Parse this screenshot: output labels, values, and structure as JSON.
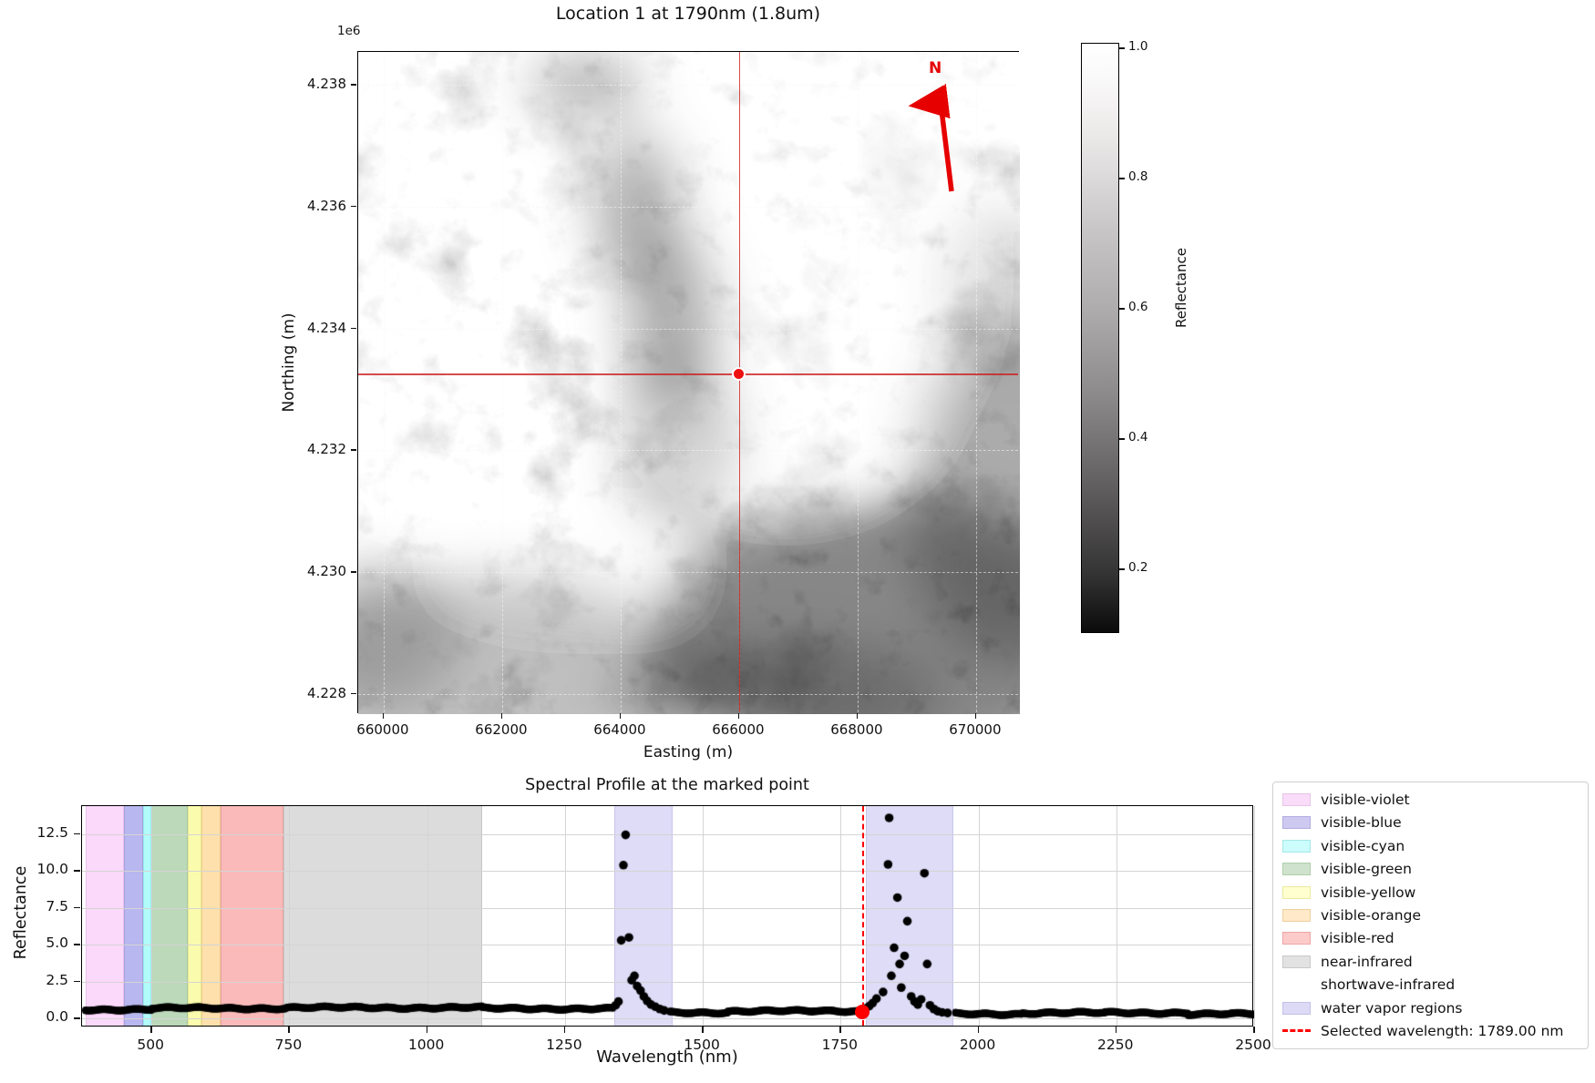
{
  "map": {
    "title": "Location 1 at 1790nm (1.8um)",
    "xlabel": "Easting (m)",
    "ylabel": "Northing (m)",
    "offset_label": "1e6",
    "north_label": "N",
    "xlim": [
      659570,
      670740
    ],
    "ylim": [
      4227670,
      4238540
    ],
    "x_ticks": [
      {
        "label": "660000",
        "value": 660000
      },
      {
        "label": "662000",
        "value": 662000
      },
      {
        "label": "664000",
        "value": 664000
      },
      {
        "label": "666000",
        "value": 666000
      },
      {
        "label": "668000",
        "value": 668000
      },
      {
        "label": "670000",
        "value": 670000
      }
    ],
    "y_ticks": [
      {
        "label": "4.238",
        "value": 4238000
      },
      {
        "label": "4.236",
        "value": 4236000
      },
      {
        "label": "4.234",
        "value": 4234000
      },
      {
        "label": "4.232",
        "value": 4232000
      },
      {
        "label": "4.230",
        "value": 4230000
      },
      {
        "label": "4.228",
        "value": 4228000
      }
    ],
    "marker": {
      "easting": 666000,
      "northing": 4233260
    },
    "crosshair_color": "#cd1e1e",
    "marker_color": "#ee1111",
    "north_arrow_color": "#e60000"
  },
  "colorbar": {
    "label": "Reflectance",
    "vmin": 0.101,
    "vmax": 1.007,
    "ticks": [
      {
        "label": "1.0",
        "value": 1.0
      },
      {
        "label": "0.8",
        "value": 0.8
      },
      {
        "label": "0.6",
        "value": 0.6
      },
      {
        "label": "0.4",
        "value": 0.4
      },
      {
        "label": "0.2",
        "value": 0.2
      }
    ]
  },
  "chart_data": {
    "type": "scatter",
    "title": "Spectral Profile at the marked point",
    "xlabel": "Wavelength (nm)",
    "ylabel": "Reflectance",
    "xlim": [
      374,
      2500
    ],
    "ylim": [
      -0.6,
      14.4
    ],
    "x_ticks": [
      500,
      750,
      1000,
      1250,
      1500,
      1750,
      2000,
      2250,
      2500
    ],
    "y_ticks": [
      "0.0",
      "2.5",
      "5.0",
      "7.5",
      "10.0",
      "12.5"
    ],
    "grid": true,
    "marker_color": "#000000",
    "baseline_segments": [
      {
        "from": 380,
        "to": 500,
        "value": 0.62
      },
      {
        "from": 500,
        "to": 745,
        "value": 0.7
      },
      {
        "from": 745,
        "to": 1100,
        "value": 0.74
      },
      {
        "from": 1100,
        "to": 1338,
        "value": 0.68
      },
      {
        "from": 1440,
        "to": 1545,
        "value": 0.42
      },
      {
        "from": 1545,
        "to": 1700,
        "value": 0.5
      },
      {
        "from": 1700,
        "to": 1786,
        "value": 0.52
      },
      {
        "from": 1958,
        "to": 2080,
        "value": 0.32
      },
      {
        "from": 2080,
        "to": 2230,
        "value": 0.38
      },
      {
        "from": 2230,
        "to": 2380,
        "value": 0.4
      },
      {
        "from": 2380,
        "to": 2500,
        "value": 0.3
      }
    ],
    "peak_points": [
      [
        1342,
        0.9
      ],
      [
        1347,
        1.15
      ],
      [
        1352,
        5.3
      ],
      [
        1356,
        10.4
      ],
      [
        1360,
        12.45
      ],
      [
        1366,
        5.5
      ],
      [
        1371,
        2.6
      ],
      [
        1376,
        2.9
      ],
      [
        1381,
        2.2
      ],
      [
        1387,
        1.9
      ],
      [
        1393,
        1.5
      ],
      [
        1399,
        1.2
      ],
      [
        1406,
        0.95
      ],
      [
        1414,
        0.8
      ],
      [
        1422,
        0.65
      ],
      [
        1430,
        0.55
      ],
      [
        1796,
        0.7
      ],
      [
        1802,
        0.85
      ],
      [
        1808,
        1.05
      ],
      [
        1815,
        1.35
      ],
      [
        1827,
        1.8
      ],
      [
        1836,
        10.45
      ],
      [
        1838,
        13.6
      ],
      [
        1842,
        2.9
      ],
      [
        1847,
        4.8
      ],
      [
        1853,
        8.2
      ],
      [
        1857,
        3.7
      ],
      [
        1860,
        2.1
      ],
      [
        1866,
        4.25
      ],
      [
        1871,
        6.6
      ],
      [
        1878,
        1.5
      ],
      [
        1884,
        1.15
      ],
      [
        1890,
        0.95
      ],
      [
        1896,
        1.3
      ],
      [
        1902,
        9.85
      ],
      [
        1907,
        3.7
      ],
      [
        1912,
        0.9
      ],
      [
        1919,
        0.65
      ],
      [
        1926,
        0.5
      ],
      [
        1934,
        0.42
      ],
      [
        1944,
        0.38
      ]
    ],
    "selected_point": [
      1789,
      0.45
    ],
    "selected_line": {
      "wavelength": 1789,
      "color": "#ff0000",
      "style": "dashed"
    },
    "bands": [
      {
        "name": "visible-violet",
        "from": 380,
        "to": 450,
        "fill": "#fad9fa",
        "edge": "#eec3ee"
      },
      {
        "name": "visible-blue",
        "from": 450,
        "to": 485,
        "fill": "#b9b7ef",
        "edge": "#a3a1e2"
      },
      {
        "name": "visible-cyan",
        "from": 485,
        "to": 500,
        "fill": "#b2fbfb",
        "edge": "#97e9e9"
      },
      {
        "name": "visible-green",
        "from": 500,
        "to": 565,
        "fill": "#bcd9ba",
        "edge": "#a5c7a2"
      },
      {
        "name": "visible-yellow",
        "from": 565,
        "to": 590,
        "fill": "#fbfbae",
        "edge": "#eaea92"
      },
      {
        "name": "visible-orange",
        "from": 590,
        "to": 625,
        "fill": "#fde0ab",
        "edge": "#efcb8c"
      },
      {
        "name": "visible-red",
        "from": 625,
        "to": 740,
        "fill": "#fbbaba",
        "edge": "#eb9f9f"
      },
      {
        "name": "near-infrared",
        "from": 740,
        "to": 1100,
        "fill": "#dcdcdc",
        "edge": "#c6c6c6"
      },
      {
        "name": "shortwave-infrared",
        "from": 1100,
        "to": 2500,
        "fill": "none",
        "edge": "none"
      },
      {
        "name": "water vapor regions",
        "from": 1340,
        "to": 1445,
        "fill": "#dedcf6",
        "edge": "#c9c6ec"
      },
      {
        "name": "water vapor regions",
        "from": 1795,
        "to": 1955,
        "fill": "#dedcf6",
        "edge": "#c9c6ec"
      }
    ]
  },
  "legend": {
    "entries": [
      {
        "label": "visible-violet",
        "swatch": "#f9dcf9",
        "border": "#e5c5e5"
      },
      {
        "label": "visible-blue",
        "swatch": "#cdc9f1",
        "border": "#b2ade2"
      },
      {
        "label": "visible-cyan",
        "swatch": "#ccfcfc",
        "border": "#a5e8e8"
      },
      {
        "label": "visible-green",
        "swatch": "#cfe2cd",
        "border": "#b0ceac"
      },
      {
        "label": "visible-yellow",
        "swatch": "#ffffcf",
        "border": "#e9e9a2"
      },
      {
        "label": "visible-orange",
        "swatch": "#ffe9c8",
        "border": "#eed0a0"
      },
      {
        "label": "visible-red",
        "swatch": "#fdcaca",
        "border": "#eda5a5"
      },
      {
        "label": "near-infrared",
        "swatch": "#e2e2e2",
        "border": "#c9c9c9"
      },
      {
        "label": "shortwave-infrared",
        "swatch": "#ffffff",
        "border": "#ffffff"
      },
      {
        "label": "water vapor regions",
        "swatch": "#dcdaf5",
        "border": "#c3c0e8"
      },
      {
        "label": "Selected wavelength: 1789.00 nm",
        "swatch": "dashed-red",
        "border": "#ff0000"
      }
    ]
  }
}
